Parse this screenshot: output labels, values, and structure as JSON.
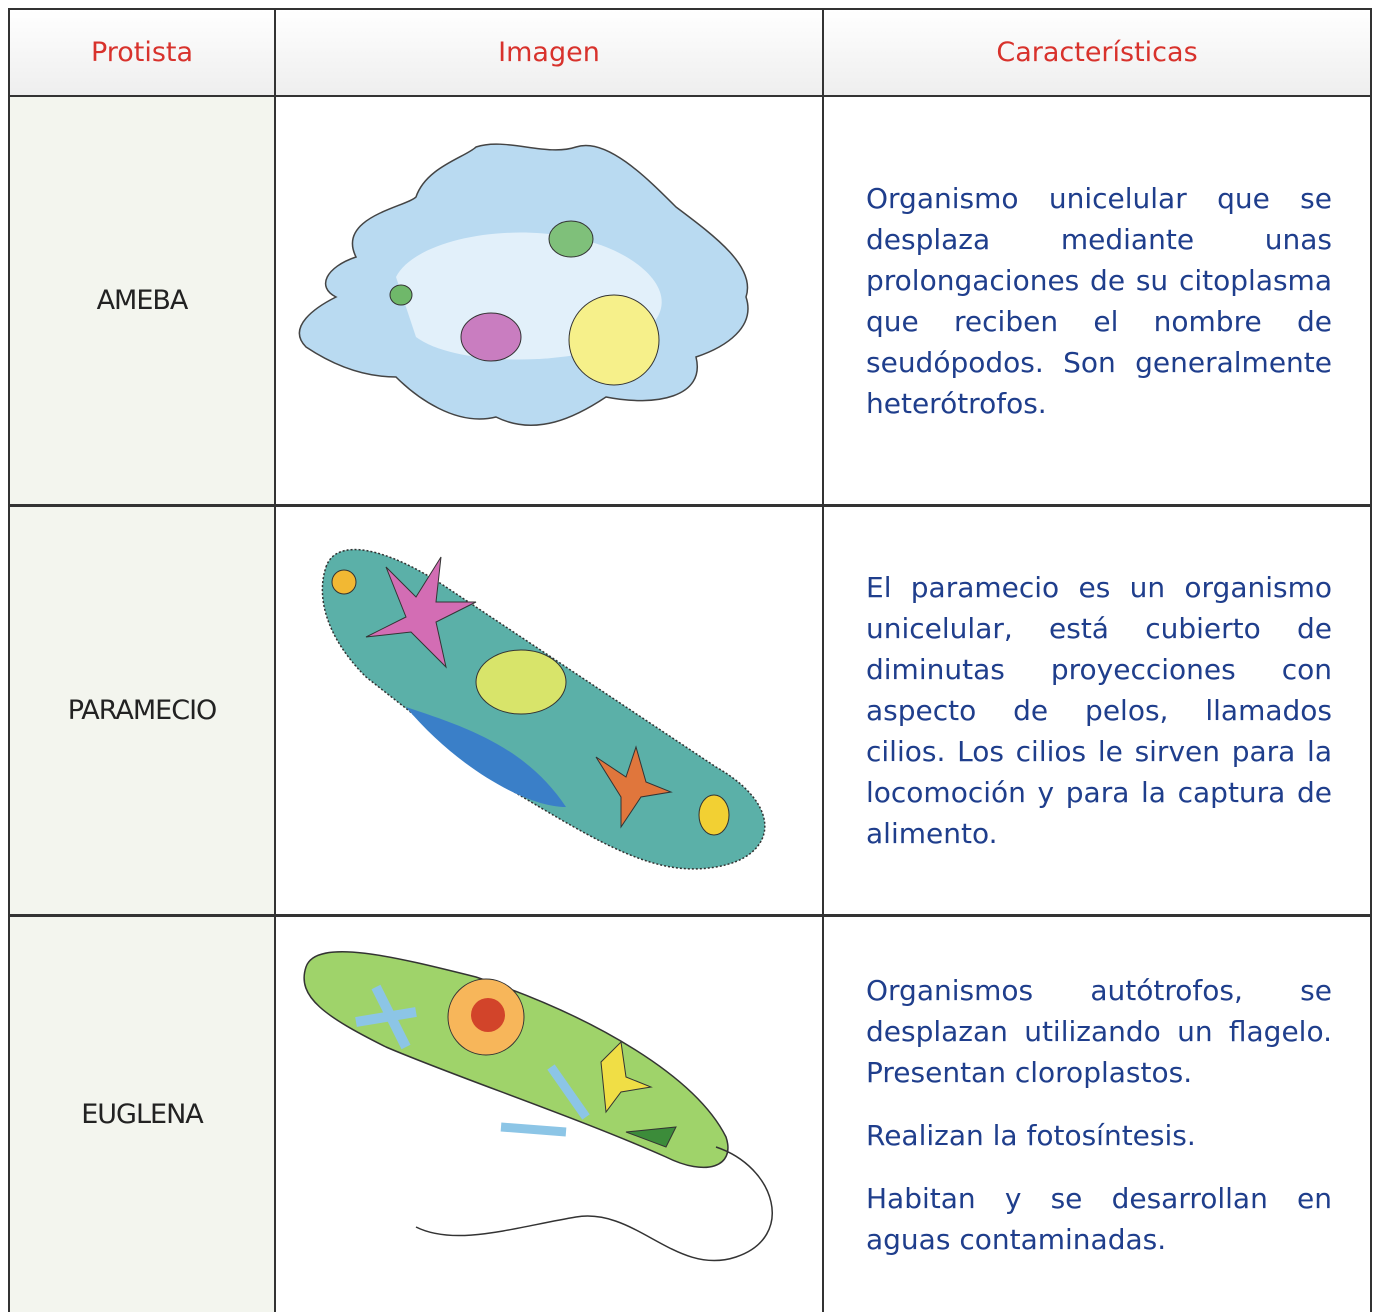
{
  "table": {
    "header": [
      "Protista",
      "Imagen",
      "Características"
    ],
    "rows": [
      {
        "name": "AMEBA",
        "description": [
          "Organismo unicelular que se desplaza mediante unas prolongaciones de su citoplasma que reciben el nombre de seudópodos. Son generalmente heterótrofos."
        ]
      },
      {
        "name": "PARAMECIO",
        "description": [
          "El paramecio es un organismo unicelular, está cubierto de diminutas proyecciones con aspecto de pelos, llamados cilios. Los cilios le sirven para la locomoción y para la captura de alimento."
        ]
      },
      {
        "name": "EUGLENA",
        "description": [
          "Organismos autótrofos, se desplazan utilizando un flagelo. Presentan cloroplastos.",
          "Realizan la fotosíntesis.",
          "Habitan y se desarrollan en aguas contaminadas."
        ]
      }
    ]
  }
}
